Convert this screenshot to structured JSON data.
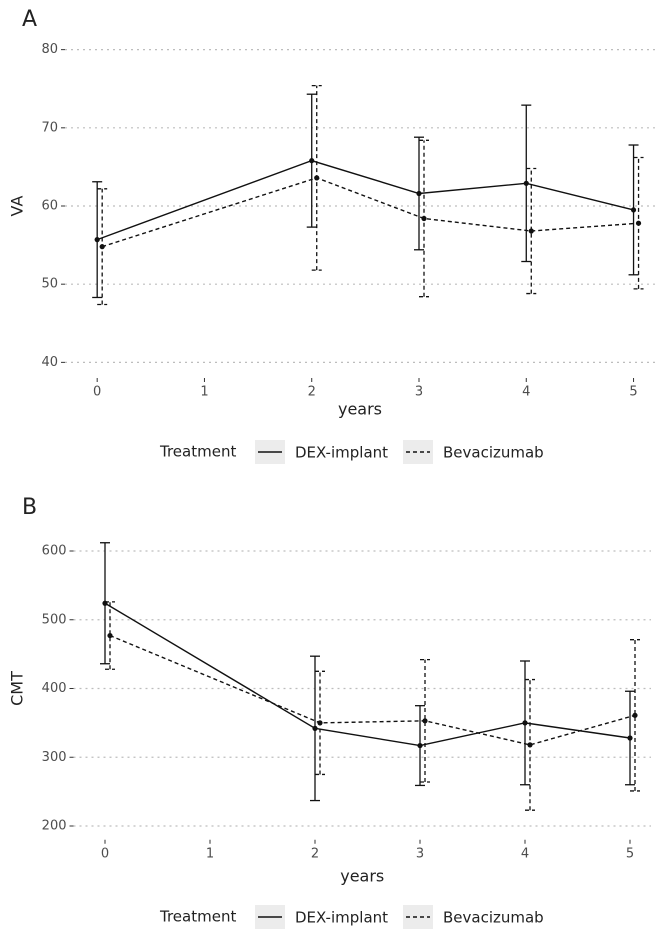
{
  "chart_data": [
    {
      "type": "line",
      "panel": "A",
      "ylabel": "VA",
      "xlabel": "years",
      "legend_title": "Treatment",
      "x": [
        0,
        2,
        3,
        4,
        5
      ],
      "xlim": [
        -0.3,
        5.2
      ],
      "xticks": [
        0,
        1,
        2,
        3,
        4,
        5
      ],
      "ylim": [
        38,
        82
      ],
      "yticks": [
        40,
        50,
        60,
        70,
        80
      ],
      "grid": true,
      "series": [
        {
          "name": "DEX-implant",
          "color": "#111111",
          "dash": "solid",
          "values": [
            55.7,
            65.8,
            61.6,
            62.9,
            59.5
          ],
          "errors": [
            7.4,
            8.5,
            7.2,
            10,
            8.3
          ]
        },
        {
          "name": "Bevacizumab",
          "color": "#111111",
          "dash": "dashed",
          "values": [
            54.8,
            63.6,
            58.4,
            56.8,
            57.8
          ],
          "errors": [
            7.4,
            11.8,
            10,
            8,
            8.4
          ]
        }
      ]
    },
    {
      "type": "line",
      "panel": "B",
      "ylabel": "CMT",
      "xlabel": "years",
      "legend_title": "Treatment",
      "x": [
        0,
        2,
        3,
        4,
        5
      ],
      "xlim": [
        -0.3,
        5.2
      ],
      "xticks": [
        0,
        1,
        2,
        3,
        4,
        5
      ],
      "ylim": [
        180,
        620
      ],
      "yticks": [
        200,
        300,
        400,
        500,
        600
      ],
      "grid": true,
      "series": [
        {
          "name": "DEX-implant",
          "color": "#111111",
          "dash": "solid",
          "values": [
            524,
            342,
            317,
            350,
            328
          ],
          "errors": [
            88,
            105,
            58,
            90,
            68
          ]
        },
        {
          "name": "Bevacizumab",
          "color": "#111111",
          "dash": "dashed",
          "values": [
            477,
            350,
            353,
            318,
            361
          ],
          "errors": [
            49,
            75,
            89,
            95,
            110
          ]
        }
      ]
    }
  ]
}
